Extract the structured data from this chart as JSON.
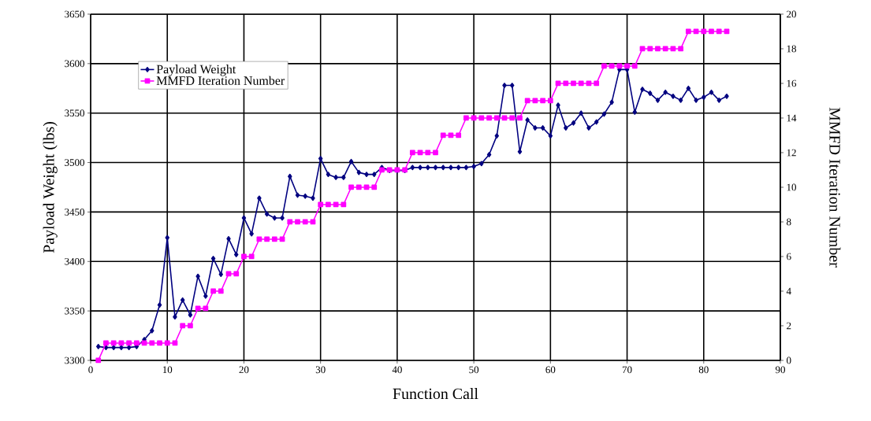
{
  "chart_data": {
    "type": "line",
    "xlabel": "Function Call",
    "ylabel": "Payload Weight (lbs)",
    "y2label": "MMFD Iteration Number",
    "x": [
      1,
      2,
      3,
      4,
      5,
      6,
      7,
      8,
      9,
      10,
      11,
      12,
      13,
      14,
      15,
      16,
      17,
      18,
      19,
      20,
      21,
      22,
      23,
      24,
      25,
      26,
      27,
      28,
      29,
      30,
      31,
      32,
      33,
      34,
      35,
      36,
      37,
      38,
      39,
      40,
      41,
      42,
      43,
      44,
      45,
      46,
      47,
      48,
      49,
      50,
      51,
      52,
      53,
      54,
      55,
      56,
      57,
      58,
      59,
      60,
      61,
      62,
      63,
      64,
      65,
      66,
      67,
      68,
      69,
      70,
      71,
      72,
      73,
      74,
      75,
      76,
      77,
      78,
      79,
      80,
      81,
      82,
      83
    ],
    "series": [
      {
        "name": "Payload Weight",
        "color": "#000080",
        "marker": "diamond",
        "values": [
          3314,
          3313,
          3313,
          3313,
          3313,
          3314,
          3321,
          3330,
          3356,
          3424,
          3344,
          3361,
          3346,
          3385,
          3365,
          3403,
          3387,
          3423,
          3407,
          3444,
          3428,
          3464,
          3448,
          3444,
          3444,
          3486,
          3467,
          3466,
          3464,
          3504,
          3488,
          3485,
          3485,
          3501,
          3490,
          3488,
          3488,
          3495,
          3492,
          3492,
          3492,
          3495,
          3495,
          3495,
          3495,
          3495,
          3495,
          3495,
          3495,
          3496,
          3499,
          3508,
          3527,
          3578,
          3578,
          3511,
          3543,
          3535,
          3535,
          3527,
          3558,
          3535,
          3540,
          3550,
          3535,
          3541,
          3549,
          3561,
          3594,
          3594,
          3551,
          3574,
          3570,
          3563,
          3571,
          3567,
          3563,
          3575,
          3563,
          3566,
          3571,
          3563,
          3567
        ]
      },
      {
        "name": "MMFD Iteration Number",
        "color": "#ff00ff",
        "marker": "square",
        "axis": "y2",
        "values": [
          0,
          1,
          1,
          1,
          1,
          1,
          1,
          1,
          1,
          1,
          1,
          2,
          2,
          3,
          3,
          4,
          4,
          5,
          5,
          6,
          6,
          7,
          7,
          7,
          7,
          8,
          8,
          8,
          8,
          9,
          9,
          9,
          9,
          10,
          10,
          10,
          10,
          11,
          11,
          11,
          11,
          12,
          12,
          12,
          12,
          13,
          13,
          13,
          14,
          14,
          14,
          14,
          14,
          14,
          14,
          14,
          15,
          15,
          15,
          15,
          16,
          16,
          16,
          16,
          16,
          16,
          17,
          17,
          17,
          17,
          17,
          18,
          18,
          18,
          18,
          18,
          18,
          19,
          19,
          19,
          19,
          19,
          19
        ]
      }
    ],
    "xlim": [
      0,
      90
    ],
    "xticks": [
      0,
      10,
      20,
      30,
      40,
      50,
      60,
      70,
      80,
      90
    ],
    "ylim": [
      3300,
      3650
    ],
    "yticks": [
      3300,
      3350,
      3400,
      3450,
      3500,
      3550,
      3600,
      3650
    ],
    "y2lim": [
      0,
      20
    ],
    "y2ticks": [
      0,
      2,
      4,
      6,
      8,
      10,
      12,
      14,
      16,
      18,
      20
    ],
    "grid": true,
    "legend": "top left"
  }
}
